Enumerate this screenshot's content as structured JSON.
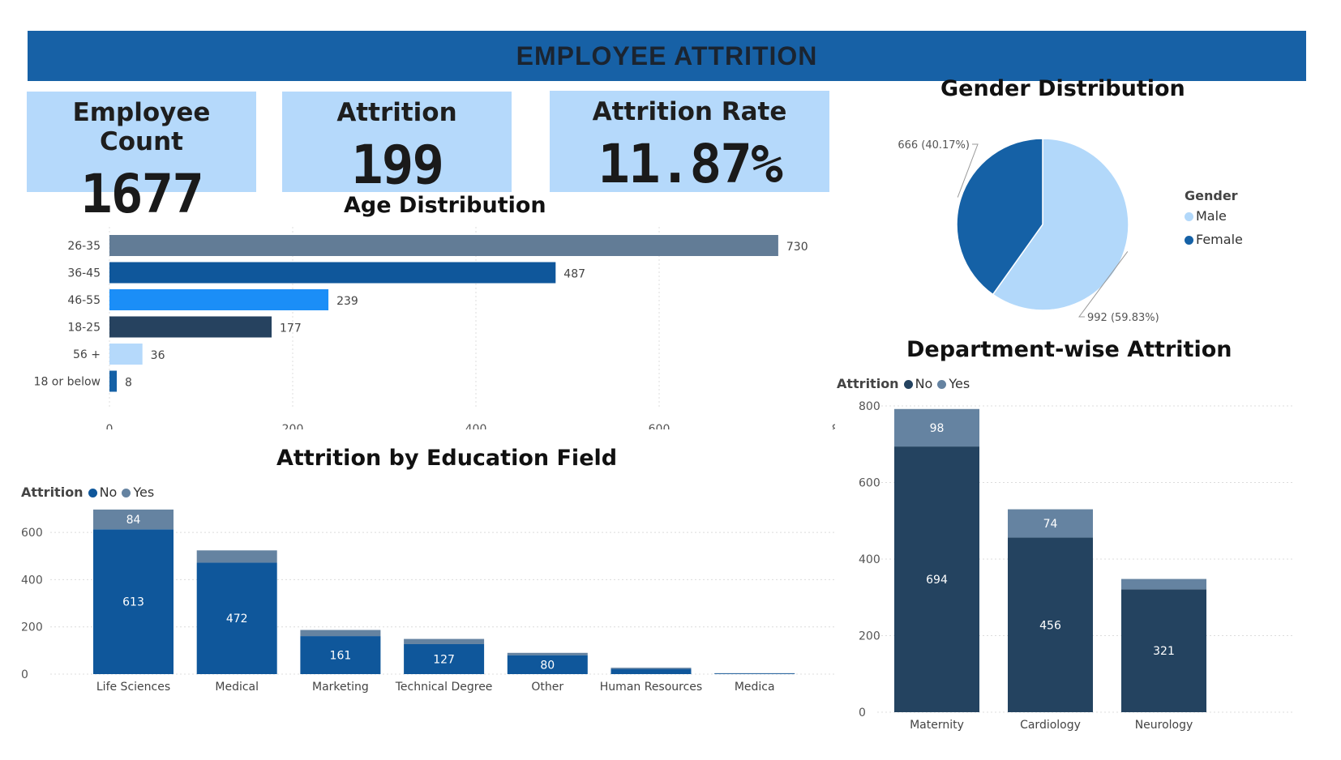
{
  "header": {
    "title": "EMPLOYEE ATTRITION"
  },
  "kpis": [
    {
      "label": "Employee Count",
      "value": "1677"
    },
    {
      "label": "Attrition",
      "value": "199"
    },
    {
      "label": "Attrition Rate",
      "value": "11.87%"
    }
  ],
  "colors": {
    "banner": "#1761a6",
    "kpi_bg": "#b5d9fb",
    "no": "#0f579b",
    "yes": "#6583a1",
    "dept_no": "#244360",
    "male": "#b2d8fa",
    "female": "#1561a6"
  },
  "chart_data": [
    {
      "type": "bar",
      "orientation": "horizontal",
      "title": "Age Distribution",
      "categories": [
        "26-35",
        "36-45",
        "46-55",
        "18-25",
        "56 +",
        "18 or below"
      ],
      "values": [
        730,
        487,
        239,
        177,
        36,
        8
      ],
      "bar_colors": [
        "#627c96",
        "#0f579b",
        "#1b8ef7",
        "#26425f",
        "#b5d9fb",
        "#1561a6"
      ],
      "xlim": [
        0,
        800
      ],
      "xticks": [
        0,
        200,
        400,
        600,
        800
      ],
      "grid": true
    },
    {
      "type": "pie",
      "title": "Gender Distribution",
      "legend_title": "Gender",
      "legend_position": "right",
      "labels": [
        "Male",
        "Female"
      ],
      "values": [
        992,
        666
      ],
      "percents": [
        59.83,
        40.17
      ],
      "data_labels": [
        "992 (59.83%)",
        "666 (40.17%)"
      ]
    },
    {
      "type": "bar",
      "stacked": true,
      "title": "Attrition by Education Field",
      "legend_title": "Attrition",
      "legend_position": "top-left",
      "categories": [
        "Life Sciences",
        "Medical",
        "Marketing",
        "Technical Degree",
        "Other",
        "Human Resources",
        "Medica"
      ],
      "series": [
        {
          "name": "No",
          "values": [
            613,
            472,
            161,
            127,
            80,
            22,
            3
          ],
          "labels": [
            "613",
            "472",
            "161",
            "127",
            "80",
            "",
            ""
          ]
        },
        {
          "name": "Yes",
          "values": [
            84,
            52,
            26,
            22,
            10,
            5,
            1
          ],
          "labels": [
            "84",
            "",
            "",
            "",
            "",
            "",
            ""
          ]
        }
      ],
      "ylim": [
        0,
        700
      ],
      "yticks": [
        0,
        200,
        400,
        600
      ],
      "grid": true
    },
    {
      "type": "bar",
      "stacked": true,
      "title": "Department-wise Attrition",
      "legend_title": "Attrition",
      "legend_position": "top-left",
      "categories": [
        "Maternity",
        "Cardiology",
        "Neurology"
      ],
      "series": [
        {
          "name": "No",
          "values": [
            694,
            456,
            321
          ],
          "labels": [
            "694",
            "456",
            "321"
          ]
        },
        {
          "name": "Yes",
          "values": [
            98,
            74,
            27
          ],
          "labels": [
            "98",
            "74",
            ""
          ]
        }
      ],
      "ylim": [
        0,
        800
      ],
      "yticks": [
        0,
        200,
        400,
        600,
        800
      ],
      "grid": true
    }
  ]
}
